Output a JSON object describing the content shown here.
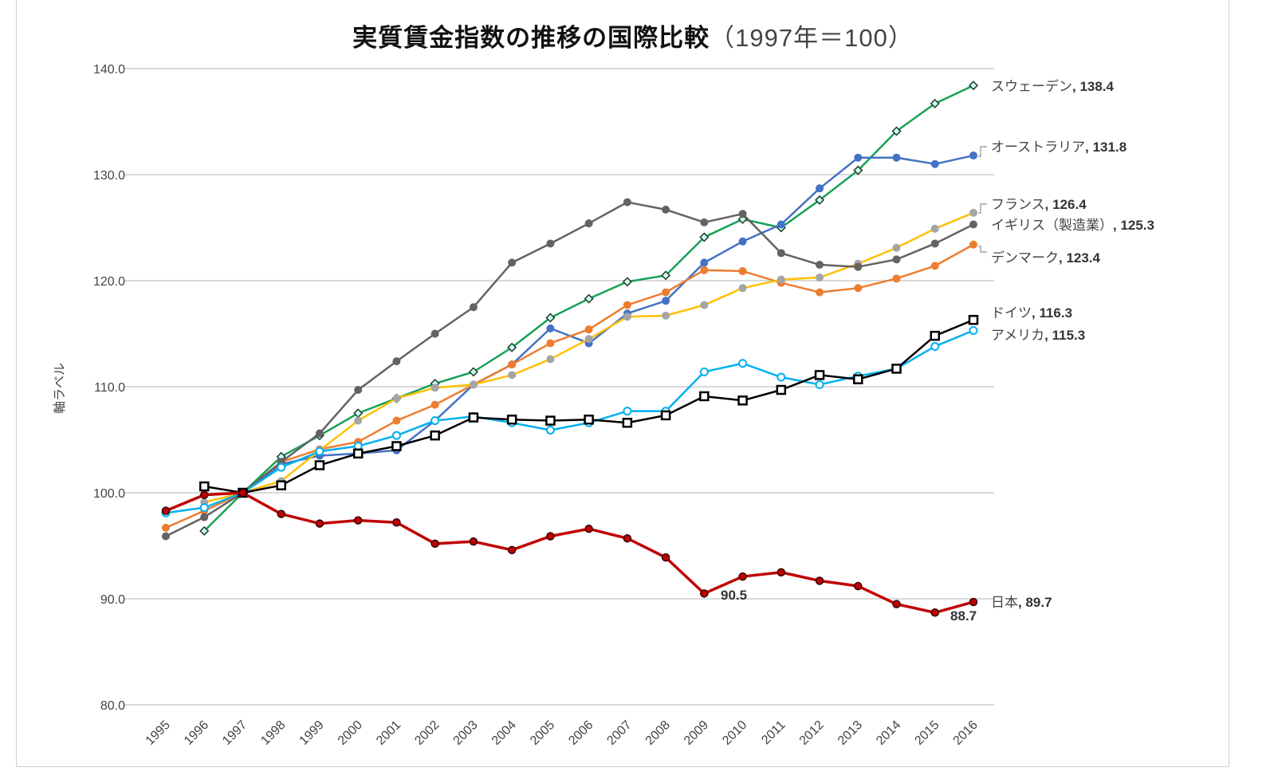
{
  "chart_data": {
    "type": "line",
    "title": "実質賃金指数の推移の国際比較",
    "subtitle": "（1997年＝100）",
    "xlabel": "",
    "ylabel": "軸ラベル",
    "ylim": [
      80,
      140
    ],
    "yticks": [
      "80.0",
      "90.0",
      "100.0",
      "110.0",
      "120.0",
      "130.0",
      "140.0"
    ],
    "grid": true,
    "legend": "none (end-of-line labels)",
    "x": [
      "1995",
      "1996",
      "1997",
      "1998",
      "1999",
      "2000",
      "2001",
      "2002",
      "2003",
      "2004",
      "2005",
      "2006",
      "2007",
      "2008",
      "2009",
      "2010",
      "2011",
      "2012",
      "2013",
      "2014",
      "2015",
      "2016"
    ],
    "series": [
      {
        "name": "スウェーデン",
        "end_label": "138.4",
        "color": "#17A255",
        "marker_color": "#17A255",
        "marker": "diamond",
        "values": [
          null,
          96.4,
          100,
          103.4,
          105.4,
          107.5,
          108.9,
          110.3,
          111.4,
          113.7,
          116.5,
          118.3,
          119.9,
          120.5,
          124.1,
          125.8,
          125.0,
          127.6,
          130.4,
          134.1,
          136.7,
          138.4
        ]
      },
      {
        "name": "オーストラリア",
        "end_label": "131.8",
        "color": "#4472C4",
        "marker_color": "#4472C4",
        "marker": "circle",
        "values": [
          null,
          null,
          100,
          102.7,
          103.5,
          103.7,
          104.0,
          106.8,
          110.2,
          112.1,
          115.5,
          114.1,
          116.9,
          118.1,
          121.7,
          123.7,
          125.3,
          128.7,
          131.6,
          131.6,
          131.0,
          131.8
        ]
      },
      {
        "name": "デンマーク",
        "end_label": "123.4",
        "color": "#ED7D31",
        "marker_color": "#ED7D31",
        "marker": "circle",
        "values": [
          96.7,
          98.3,
          100,
          102.9,
          104.1,
          104.8,
          106.8,
          108.3,
          110.2,
          112.1,
          114.1,
          115.4,
          117.7,
          118.9,
          121.0,
          120.9,
          119.8,
          118.9,
          119.3,
          120.2,
          121.4,
          123.4
        ]
      },
      {
        "name": "フランス",
        "end_label": "126.4",
        "color": "#FFC000",
        "marker_color": "#A5A5A5",
        "marker": "circle",
        "values": [
          null,
          99.1,
          100,
          101.1,
          104.0,
          106.8,
          108.9,
          109.9,
          110.2,
          111.1,
          112.6,
          114.5,
          116.6,
          116.7,
          117.7,
          119.3,
          120.1,
          120.3,
          121.6,
          123.1,
          124.9,
          126.4
        ]
      },
      {
        "name": "イギリス（製造業）",
        "end_label": "125.3",
        "color": "#636363",
        "marker_color": "#636363",
        "marker": "circle",
        "values": [
          95.9,
          97.7,
          100,
          102.9,
          105.6,
          109.7,
          112.4,
          115.0,
          117.5,
          121.7,
          123.5,
          125.4,
          127.4,
          126.7,
          125.5,
          126.3,
          122.6,
          121.5,
          121.3,
          122.0,
          123.5,
          125.3
        ]
      },
      {
        "name": "アメリカ",
        "end_label": "115.3",
        "color": "#00B0F0",
        "marker_color": "#00B0F0",
        "marker": "hollow-circle",
        "values": [
          98.1,
          98.6,
          100,
          102.4,
          103.9,
          104.4,
          105.4,
          106.8,
          107.2,
          106.6,
          105.9,
          106.6,
          107.7,
          107.7,
          111.4,
          112.2,
          110.9,
          110.2,
          111.0,
          111.7,
          113.8,
          115.3
        ]
      },
      {
        "name": "ドイツ",
        "end_label": "116.3",
        "color": "#000000",
        "marker_color": "#000000",
        "marker": "hollow-square",
        "values": [
          null,
          100.6,
          100,
          100.7,
          102.6,
          103.7,
          104.4,
          105.4,
          107.1,
          106.9,
          106.8,
          106.9,
          106.6,
          107.3,
          109.1,
          108.7,
          109.7,
          111.1,
          110.7,
          111.7,
          114.8,
          116.3
        ]
      },
      {
        "name": "日本",
        "end_label": "89.7",
        "color": "#C00000",
        "marker_color": "#C00000",
        "marker": "circle-outlined",
        "values": [
          98.3,
          99.8,
          100,
          98.0,
          97.1,
          97.4,
          97.2,
          95.2,
          95.4,
          94.6,
          95.9,
          96.6,
          95.7,
          93.9,
          90.5,
          92.1,
          92.5,
          91.7,
          91.2,
          89.5,
          88.7,
          89.7
        ]
      }
    ],
    "annotations": [
      {
        "series": "日本",
        "x": "2009",
        "text": "90.5"
      },
      {
        "series": "日本",
        "x": "2015",
        "text": "88.7"
      }
    ]
  }
}
